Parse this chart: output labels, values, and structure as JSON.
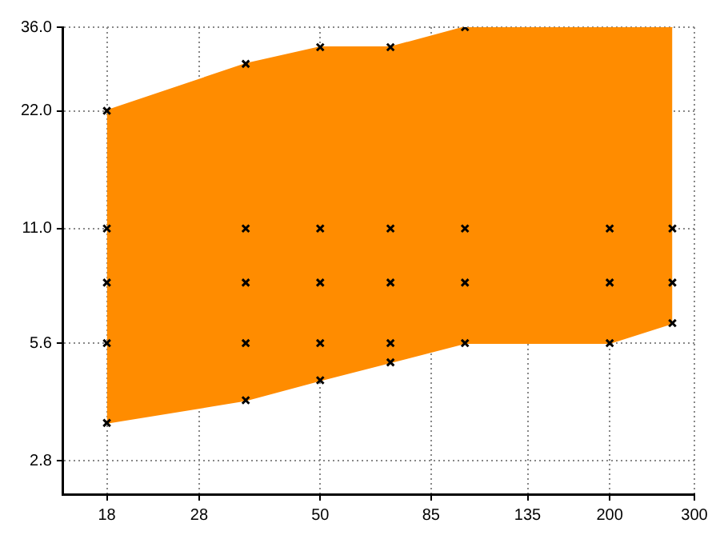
{
  "chart_data": {
    "type": "area",
    "log": "xy",
    "grid": true,
    "xlim": [
      14.6,
      300
    ],
    "ylim": [
      2.3,
      36
    ],
    "xticks": [
      18,
      28,
      50,
      85,
      135,
      200,
      300
    ],
    "yticks": [
      {
        "value": 2.8,
        "label": "2.8"
      },
      {
        "value": 5.6,
        "label": "5.6"
      },
      {
        "value": 11,
        "label": "11.0"
      },
      {
        "value": 22,
        "label": "22.0"
      },
      {
        "value": 36,
        "label": "36.0"
      }
    ],
    "series": [
      {
        "type": "line",
        "x": [
          18,
          35,
          50,
          70,
          100,
          200,
          270
        ],
        "values": [
          3.5,
          4.0,
          4.5,
          5.0,
          5.6,
          5.6,
          6.3
        ],
        "color": "#ff8c00"
      },
      {
        "x": [
          18,
          35,
          50,
          70,
          100,
          200,
          270
        ],
        "values": [
          22,
          29,
          32,
          32,
          36,
          36,
          36
        ],
        "color": "#ff8c00"
      },
      {
        "type": "scatter",
        "marker": "cross",
        "color": "#000000",
        "x": [
          18,
          18,
          18,
          18,
          18,
          35,
          35,
          35,
          35,
          35,
          50,
          50,
          50,
          50,
          50,
          70,
          70,
          70,
          70,
          70,
          100,
          100,
          100,
          100,
          200,
          200,
          200,
          270,
          270,
          270
        ],
        "values": [
          22,
          11,
          8,
          5.6,
          3.5,
          29,
          11,
          8,
          5.6,
          4.0,
          32,
          11,
          8,
          5.6,
          4.5,
          32,
          11,
          8,
          5.6,
          5.0,
          36,
          11,
          8,
          5.6,
          11,
          8,
          5.6,
          11,
          8,
          6.3
        ]
      }
    ]
  }
}
